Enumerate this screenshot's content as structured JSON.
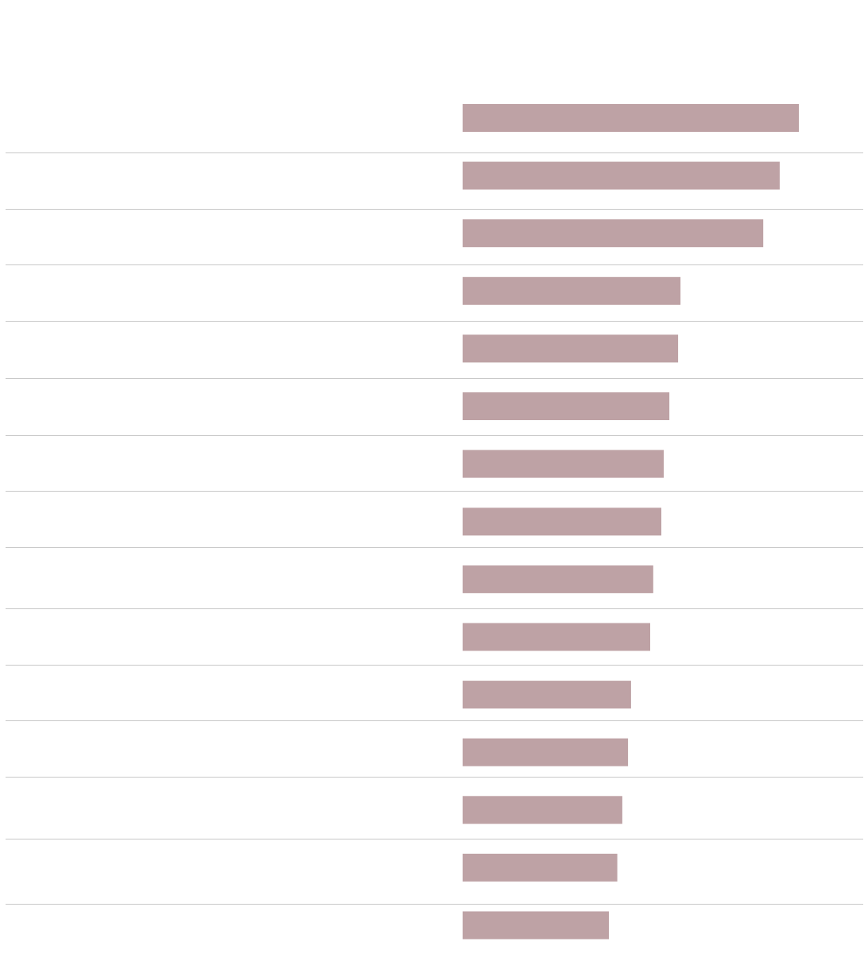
{
  "chart_data": {
    "type": "bar",
    "orientation": "horizontal",
    "categories": [
      "",
      "",
      "",
      "",
      "",
      "",
      "",
      "",
      "",
      "",
      "",
      "",
      "",
      "",
      ""
    ],
    "values": [
      100,
      94.3,
      89.4,
      64.8,
      64.1,
      61.5,
      59.8,
      59.1,
      56.7,
      55.8,
      50.1,
      49.2,
      47.5,
      46.0,
      43.5
    ],
    "title": "",
    "xlabel": "",
    "ylabel": "",
    "xlim": [
      0,
      100
    ],
    "grid": false,
    "row_separators": true,
    "colors": {
      "bar": "#bea2a5",
      "separator": "#c8c8c8",
      "background": "#ffffff"
    }
  }
}
